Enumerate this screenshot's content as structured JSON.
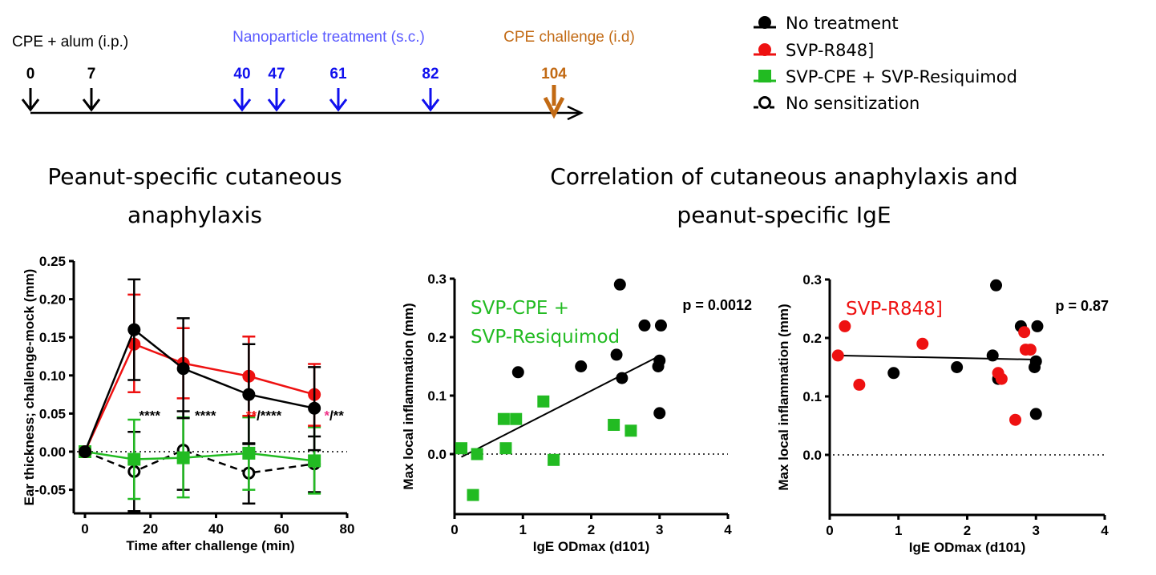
{
  "timeline": {
    "labels": {
      "sensitization": "CPE + alum (i.p.)",
      "treatment": "Nanoparticle treatment (s.c.)",
      "challenge": "CPE challenge (i.d)"
    },
    "days": [
      {
        "day": "0",
        "kind": "sensitization"
      },
      {
        "day": "7",
        "kind": "sensitization"
      },
      {
        "day": "40",
        "kind": "treatment"
      },
      {
        "day": "47",
        "kind": "treatment"
      },
      {
        "day": "61",
        "kind": "treatment"
      },
      {
        "day": "82",
        "kind": "treatment"
      },
      {
        "day": "104",
        "kind": "challenge"
      }
    ],
    "colors": {
      "sensitization": "#000000",
      "treatment": "#1010ee",
      "treatment_label": "#5a5aff",
      "challenge": "#c26a14"
    }
  },
  "legend": [
    {
      "label": "No treatment",
      "marker": "filled-circle",
      "line": "solid",
      "color": "#000000"
    },
    {
      "label": "SVP-R848]",
      "marker": "filled-circle",
      "line": "solid",
      "color": "#ee1111"
    },
    {
      "label": "SVP-CPE + SVP-Resiquimod",
      "marker": "filled-square",
      "line": "solid",
      "color": "#22bb22"
    },
    {
      "label": "No sensitization",
      "marker": "open-circle",
      "line": "dashed",
      "color": "#000000"
    }
  ],
  "titles": {
    "left": [
      "Peanut-specific cutaneous",
      "anaphylaxis"
    ],
    "right": [
      "Correlation of cutaneous anaphylaxis and",
      "peanut-specific IgE"
    ]
  },
  "chart_data": [
    {
      "type": "line",
      "xlabel": "Time after challenge (min)",
      "ylabel": "Ear thickness; challenge-mock (mm)",
      "xlim": [
        -2,
        80
      ],
      "ylim": [
        -0.08,
        0.25
      ],
      "xticks": [
        "0",
        "20",
        "40",
        "60",
        "80"
      ],
      "yticks": [
        "-0.05",
        "0.00",
        "0.05",
        "0.10",
        "0.15",
        "0.20",
        "0.25"
      ],
      "reference_line": 0,
      "series": [
        {
          "name": "No treatment",
          "color": "#000000",
          "marker": "filled-circle",
          "dash": false,
          "x": [
            0,
            15,
            30,
            50,
            70
          ],
          "y": [
            0,
            0.16,
            0.109,
            0.075,
            0.057
          ],
          "err_hi": [
            0,
            0.226,
            0.175,
            0.141,
            0.111
          ],
          "err_lo": [
            0,
            0.094,
            0.044,
            0.01,
            0.002
          ]
        },
        {
          "name": "SVP-R848]",
          "color": "#ee1111",
          "marker": "filled-circle",
          "dash": false,
          "x": [
            0,
            15,
            30,
            50,
            70
          ],
          "y": [
            0,
            0.141,
            0.116,
            0.099,
            0.075
          ],
          "err_hi": [
            0,
            0.206,
            0.162,
            0.151,
            0.115
          ],
          "err_lo": [
            0,
            0.078,
            0.07,
            0.047,
            0.034
          ]
        },
        {
          "name": "SVP-CPE + SVP-Resiquimod",
          "color": "#22bb22",
          "marker": "filled-square",
          "dash": false,
          "x": [
            0,
            15,
            30,
            50,
            70
          ],
          "y": [
            0,
            -0.01,
            -0.008,
            -0.002,
            -0.012
          ],
          "err_hi": [
            0,
            0.042,
            0.045,
            0.045,
            0.032
          ],
          "err_lo": [
            0,
            -0.062,
            -0.06,
            -0.05,
            -0.055
          ]
        },
        {
          "name": "No sensitization",
          "color": "#000000",
          "marker": "open-circle",
          "dash": true,
          "x": [
            0,
            15,
            30,
            50,
            70
          ],
          "y": [
            0,
            -0.026,
            0.002,
            -0.028,
            -0.016
          ],
          "err_hi": [
            0,
            0.026,
            0.053,
            0.011,
            0.02
          ],
          "err_lo": [
            0,
            -0.078,
            -0.05,
            -0.068,
            -0.053
          ]
        }
      ],
      "annotations": [
        {
          "x": 23,
          "y": 0.052,
          "parts": [
            {
              "text": "****",
              "color": "#000000"
            }
          ]
        },
        {
          "x": 40,
          "y": 0.052,
          "parts": [
            {
              "text": "****",
              "color": "#000000"
            }
          ]
        },
        {
          "x": 60,
          "y": 0.052,
          "parts": [
            {
              "text": "**",
              "color": "#ee1111"
            },
            {
              "text": "/****",
              "color": "#000000"
            }
          ]
        },
        {
          "x": 79,
          "y": 0.052,
          "parts": [
            {
              "text": "*",
              "color": "#ee3388"
            },
            {
              "text": "/**",
              "color": "#000000"
            }
          ]
        }
      ]
    },
    {
      "type": "scatter",
      "xlabel": "IgE ODmax (d101)",
      "ylabel": "Max local inflammation (mm)",
      "xlim": [
        0,
        4
      ],
      "ylim": [
        -0.103,
        0.3
      ],
      "xticks": [
        "0",
        "1",
        "2",
        "3",
        "4"
      ],
      "yticks": [
        "0.0",
        "0.1",
        "0.2",
        "0.3"
      ],
      "reference_line": 0,
      "group_label": {
        "lines": [
          "SVP-CPE +",
          "SVP-Resiquimod"
        ],
        "color": "#22bb22"
      },
      "p_value": "p = 0.0012",
      "fit": {
        "x": [
          0.1,
          3.0
        ],
        "y": [
          -0.005,
          0.168
        ]
      },
      "series": [
        {
          "name": "No treatment",
          "color": "#000000",
          "marker": "filled-circle",
          "x": [
            0.93,
            1.85,
            2.37,
            2.42,
            2.45,
            2.78,
            3.02,
            2.98,
            3.0,
            3.0
          ],
          "y": [
            0.14,
            0.15,
            0.17,
            0.29,
            0.13,
            0.22,
            0.22,
            0.15,
            0.16,
            0.07
          ]
        },
        {
          "name": "SVP-CPE + SVP-Resiquimod",
          "color": "#22bb22",
          "marker": "filled-square",
          "x": [
            0.1,
            0.33,
            0.27,
            0.72,
            0.9,
            0.75,
            1.3,
            1.45,
            2.33,
            2.58
          ],
          "y": [
            0.01,
            0.0,
            -0.07,
            0.06,
            0.06,
            0.01,
            0.09,
            -0.01,
            0.05,
            0.04
          ]
        }
      ]
    },
    {
      "type": "scatter",
      "xlabel": "IgE ODmax (d101)",
      "ylabel": "Max local inflammation (mm)",
      "xlim": [
        0,
        4
      ],
      "ylim": [
        -0.103,
        0.3
      ],
      "xticks": [
        "0",
        "1",
        "2",
        "3",
        "4"
      ],
      "yticks": [
        "0.0",
        "0.1",
        "0.2",
        "0.3"
      ],
      "reference_line": 0,
      "group_label": {
        "lines": [
          "SVP-R848]"
        ],
        "color": "#ee1111"
      },
      "p_value": "p = 0.87",
      "fit": {
        "x": [
          0.12,
          3.0
        ],
        "y": [
          0.17,
          0.163
        ]
      },
      "series": [
        {
          "name": "No treatment",
          "color": "#000000",
          "marker": "filled-circle",
          "x": [
            0.93,
            1.85,
            2.37,
            2.42,
            2.45,
            2.78,
            3.02,
            2.98,
            3.0,
            3.0
          ],
          "y": [
            0.14,
            0.15,
            0.17,
            0.29,
            0.13,
            0.22,
            0.22,
            0.15,
            0.16,
            0.07
          ]
        },
        {
          "name": "SVP-R848]",
          "color": "#ee1111",
          "marker": "filled-circle",
          "x": [
            0.12,
            0.22,
            0.43,
            1.35,
            2.45,
            2.5,
            2.7,
            2.83,
            2.85,
            2.92
          ],
          "y": [
            0.17,
            0.22,
            0.12,
            0.19,
            0.14,
            0.13,
            0.06,
            0.21,
            0.18,
            0.18
          ]
        }
      ]
    }
  ]
}
